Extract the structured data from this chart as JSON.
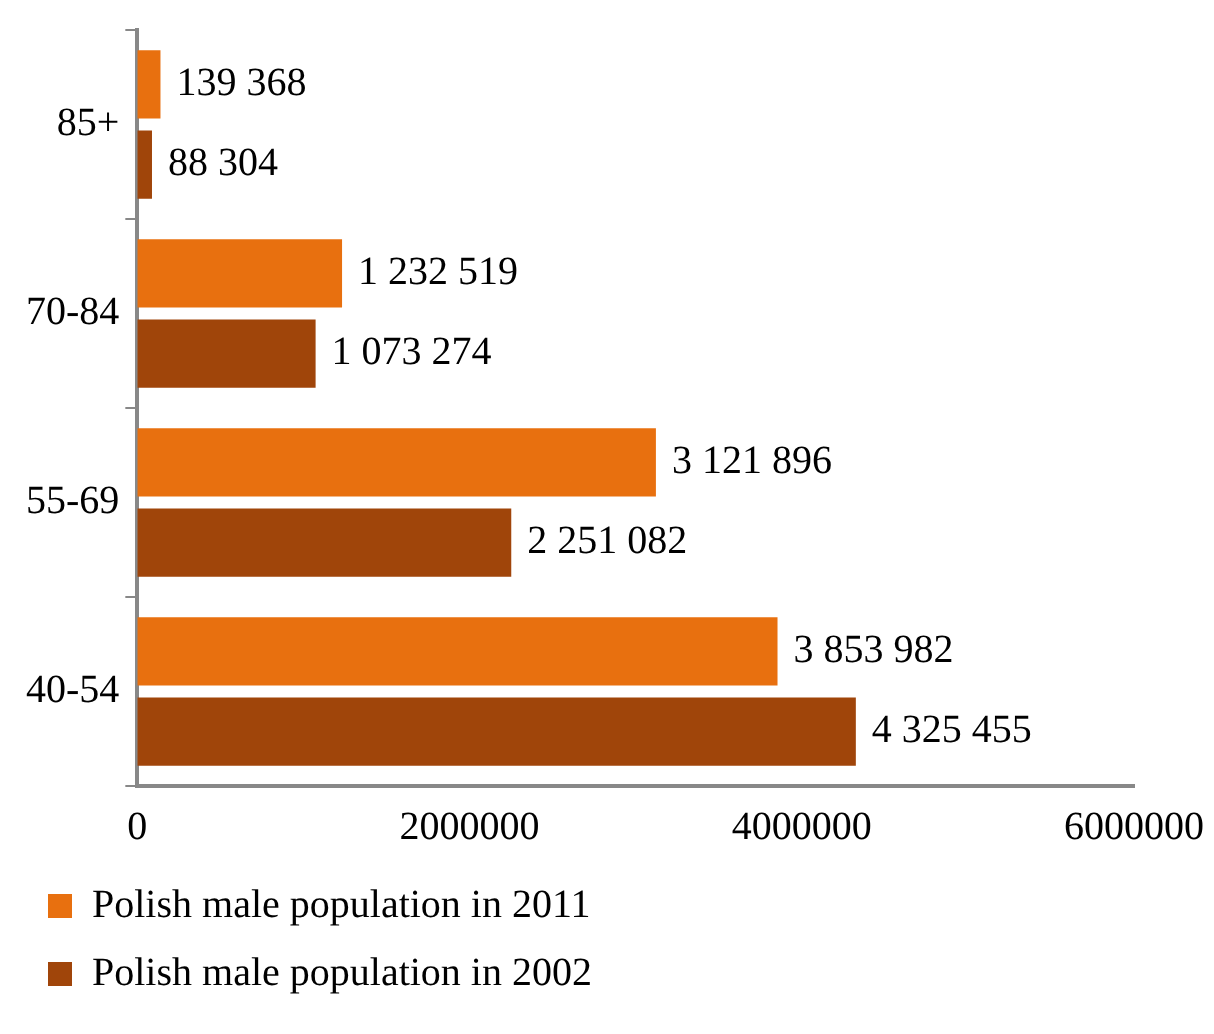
{
  "chart_data": {
    "type": "bar",
    "orientation": "horizontal",
    "categories": [
      "85+",
      "70-84",
      "55-69",
      "40-54"
    ],
    "series": [
      {
        "name": "Polish male population in 2011",
        "color": "#e8700f",
        "values": [
          139368,
          1232519,
          3121896,
          3853982
        ],
        "value_labels": [
          "139 368",
          "1 232 519",
          "3 121 896",
          "3 853 982"
        ]
      },
      {
        "name": "Polish male population in 2002",
        "color": "#a0450a",
        "values": [
          88304,
          1073274,
          2251082,
          4325455
        ],
        "value_labels": [
          "88 304",
          "1 073 274",
          "2 251 082",
          "4 325 455"
        ]
      }
    ],
    "xlim": [
      0,
      6000000
    ],
    "xticks": [
      0,
      2000000,
      4000000,
      6000000
    ],
    "grid": false,
    "legend": "bottom"
  }
}
